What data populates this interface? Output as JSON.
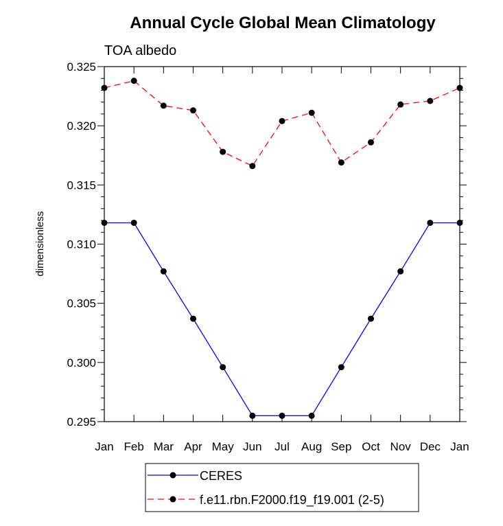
{
  "chart_data": {
    "type": "line",
    "title": "Annual Cycle Global Mean Climatology",
    "subtitle": "TOA albedo",
    "xlabel": "",
    "ylabel": "dimensionless",
    "categories": [
      "Jan",
      "Feb",
      "Mar",
      "Apr",
      "May",
      "Jun",
      "Jul",
      "Aug",
      "Sep",
      "Oct",
      "Nov",
      "Dec",
      "Jan"
    ],
    "yticks": [
      "0.295",
      "0.300",
      "0.305",
      "0.310",
      "0.315",
      "0.320",
      "0.325"
    ],
    "ylim": [
      0.295,
      0.325
    ],
    "grid": false,
    "legend_position": "bottom",
    "series": [
      {
        "name": "CERES",
        "color": "#0000ff",
        "dash": "solid",
        "values": [
          0.3118,
          0.3118,
          0.3077,
          0.3037,
          0.2996,
          0.2955,
          0.2955,
          0.2955,
          0.2996,
          0.3037,
          0.3077,
          0.3118,
          0.3118
        ]
      },
      {
        "name": "f.e11.rbn.F2000.f19_f19.001 (2-5)",
        "color": "#ff0000",
        "dash": "dashed",
        "values": [
          0.3232,
          0.3238,
          0.3217,
          0.3213,
          0.3178,
          0.3166,
          0.3204,
          0.3211,
          0.3169,
          0.3186,
          0.3218,
          0.3221,
          0.3232
        ]
      }
    ]
  }
}
